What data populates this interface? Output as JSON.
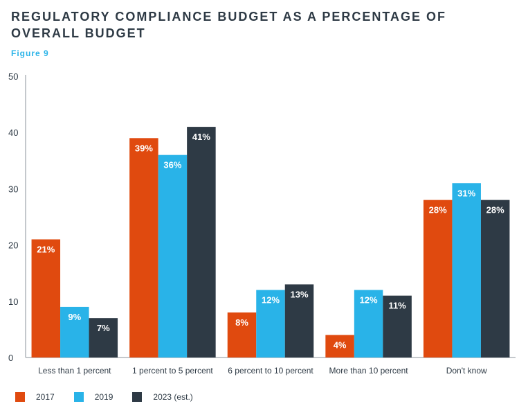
{
  "chart_data": {
    "type": "bar",
    "title": "REGULATORY COMPLIANCE BUDGET AS A PERCENTAGE OF OVERALL BUDGET",
    "subtitle": "Figure 9",
    "categories": [
      "Less than 1 percent",
      "1 percent to 5 percent",
      "6 percent to 10 percent",
      "More than 10 percent",
      "Don't know"
    ],
    "series": [
      {
        "name": "2017",
        "color": "#e04a0f",
        "values": [
          21,
          39,
          8,
          4,
          28
        ],
        "labels": [
          "21%",
          "39%",
          "8%",
          "4%",
          "28%"
        ]
      },
      {
        "name": "2019",
        "color": "#29b3e8",
        "values": [
          9,
          36,
          12,
          12,
          31
        ],
        "labels": [
          "9%",
          "36%",
          "12%",
          "12%",
          "31%"
        ]
      },
      {
        "name": "2023 (est.)",
        "color": "#2e3a45",
        "values": [
          7,
          41,
          13,
          11,
          28
        ],
        "labels": [
          "7%",
          "41%",
          "13%",
          "11%",
          "28%"
        ]
      }
    ],
    "ylim": [
      0,
      50
    ],
    "yticks": [
      "0",
      "10",
      "20",
      "30",
      "40",
      "50"
    ],
    "xlabel": "",
    "ylabel": "",
    "grid": false,
    "legend_position": "bottom-left"
  }
}
